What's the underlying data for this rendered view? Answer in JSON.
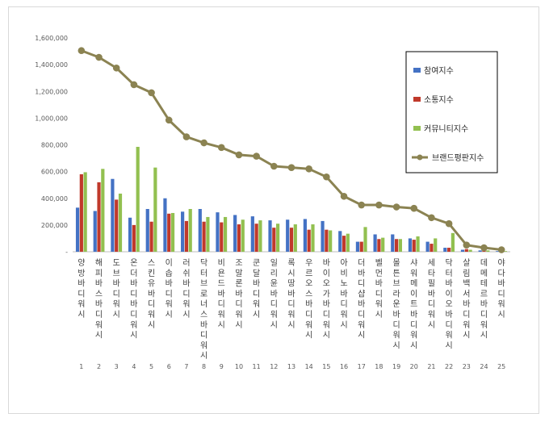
{
  "chart_data": {
    "type": "bar",
    "yaxis": {
      "min": 0,
      "max": 1600000,
      "step": 200000,
      "tick_labels": [
        "-",
        "200,000",
        "400,000",
        "600,000",
        "800,000",
        "1,000,000",
        "1,200,000",
        "1,400,000",
        "1,600,000"
      ]
    },
    "grid": false,
    "legend_position": "top-right",
    "colors": {
      "참여지수": "#4472c4",
      "소통지수": "#c0392b",
      "커뮤니티지수": "#92c050",
      "브랜드평판지수": "#8b8352"
    },
    "ranks": [
      "1",
      "2",
      "3",
      "4",
      "5",
      "6",
      "7",
      "8",
      "9",
      "10",
      "11",
      "12",
      "13",
      "14",
      "15",
      "16",
      "17",
      "18",
      "19",
      "20",
      "21",
      "22",
      "23",
      "24",
      "25"
    ],
    "categories": [
      "양방바디워시",
      "해피바스바디워시",
      "도브바디워시",
      "온더바디바디워시",
      "스킨유바디워시",
      "이솝바디워시",
      "러쉬바디워시",
      "닥터브로너스바디워시",
      "비욘드바디워시",
      "조말론바디워시",
      "쿤달바디워시",
      "일리윤바디워시",
      "록시땅바디워시",
      "우르오스바디워시",
      "바이오가바디워시",
      "아비노바디워시",
      "더바디샵바디워시",
      "벨먼바디워시",
      "몰튼브라운바디워시",
      "샤워메이트바디워시",
      "세타필바디워시",
      "닥터바이오바디워시",
      "살림백서바디워시",
      "데메테르바디워시",
      "야다바디워시"
    ],
    "series": [
      {
        "name": "참여지수",
        "type": "bar",
        "values": [
          330000,
          305000,
          545000,
          255000,
          320000,
          400000,
          300000,
          320000,
          295000,
          275000,
          265000,
          235000,
          240000,
          245000,
          230000,
          155000,
          75000,
          130000,
          130000,
          100000,
          75000,
          30000,
          15000,
          10000,
          5000
        ]
      },
      {
        "name": "소통지수",
        "type": "bar",
        "values": [
          580000,
          520000,
          390000,
          200000,
          225000,
          285000,
          230000,
          225000,
          220000,
          205000,
          210000,
          180000,
          180000,
          165000,
          165000,
          120000,
          75000,
          95000,
          95000,
          90000,
          60000,
          30000,
          20000,
          10000,
          5000
        ]
      },
      {
        "name": "커뮤니티지수",
        "type": "bar",
        "values": [
          595000,
          620000,
          435000,
          785000,
          630000,
          290000,
          320000,
          260000,
          260000,
          240000,
          235000,
          210000,
          205000,
          205000,
          160000,
          135000,
          185000,
          105000,
          95000,
          115000,
          100000,
          140000,
          15000,
          10000,
          5000
        ]
      },
      {
        "name": "브랜드평판지수",
        "type": "line",
        "values": [
          1505000,
          1455000,
          1375000,
          1250000,
          1190000,
          985000,
          860000,
          815000,
          780000,
          725000,
          715000,
          640000,
          630000,
          620000,
          560000,
          415000,
          350000,
          350000,
          335000,
          325000,
          255000,
          210000,
          50000,
          30000,
          15000
        ]
      }
    ]
  }
}
